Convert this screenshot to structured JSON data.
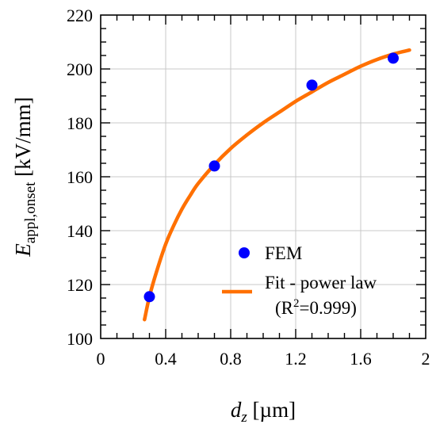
{
  "chart_data": {
    "type": "scatter",
    "x_axis": {
      "label_main": "d",
      "label_sub": "z",
      "label_unit": " [µm]",
      "lim": [
        0,
        2
      ],
      "ticks": [
        0,
        0.4,
        0.8,
        1.2,
        1.6,
        2
      ],
      "tick_labels": [
        "0",
        "0.4",
        "0.8",
        "1.2",
        "1.6",
        "2"
      ],
      "minor_step": 0.1
    },
    "y_axis": {
      "label_main": "E",
      "label_sub": "appl,onset",
      "label_unit": " [kV/mm]",
      "lim": [
        100,
        220
      ],
      "ticks": [
        100,
        120,
        140,
        160,
        180,
        200,
        220
      ],
      "tick_labels": [
        "100",
        "120",
        "140",
        "160",
        "180",
        "200",
        "220"
      ],
      "minor_step": 5
    },
    "grid": true,
    "series": [
      {
        "name": "FEM",
        "kind": "points",
        "color": "#0000ff",
        "x": [
          0.3,
          0.7,
          1.3,
          1.8
        ],
        "y": [
          115.5,
          164,
          194,
          204
        ]
      },
      {
        "name": "Fit - power law",
        "kind": "line",
        "color": "#ff7000",
        "x": [
          0.27,
          0.3,
          0.35,
          0.4,
          0.45,
          0.5,
          0.55,
          0.6,
          0.7,
          0.8,
          0.9,
          1.0,
          1.1,
          1.2,
          1.3,
          1.4,
          1.5,
          1.6,
          1.7,
          1.8,
          1.9
        ],
        "y": [
          107,
          115.5,
          126,
          135,
          142,
          148,
          153,
          157.5,
          164.5,
          170.5,
          175.5,
          180,
          184,
          188,
          191.5,
          195,
          198,
          201,
          203.5,
          205.5,
          207
        ]
      }
    ],
    "legend": {
      "position": "bottom-right",
      "fem_label": "FEM",
      "fit_label": "Fit - power law",
      "r2_open": "(R",
      "r2_sup": "2",
      "r2_close": "=0.999)"
    }
  }
}
